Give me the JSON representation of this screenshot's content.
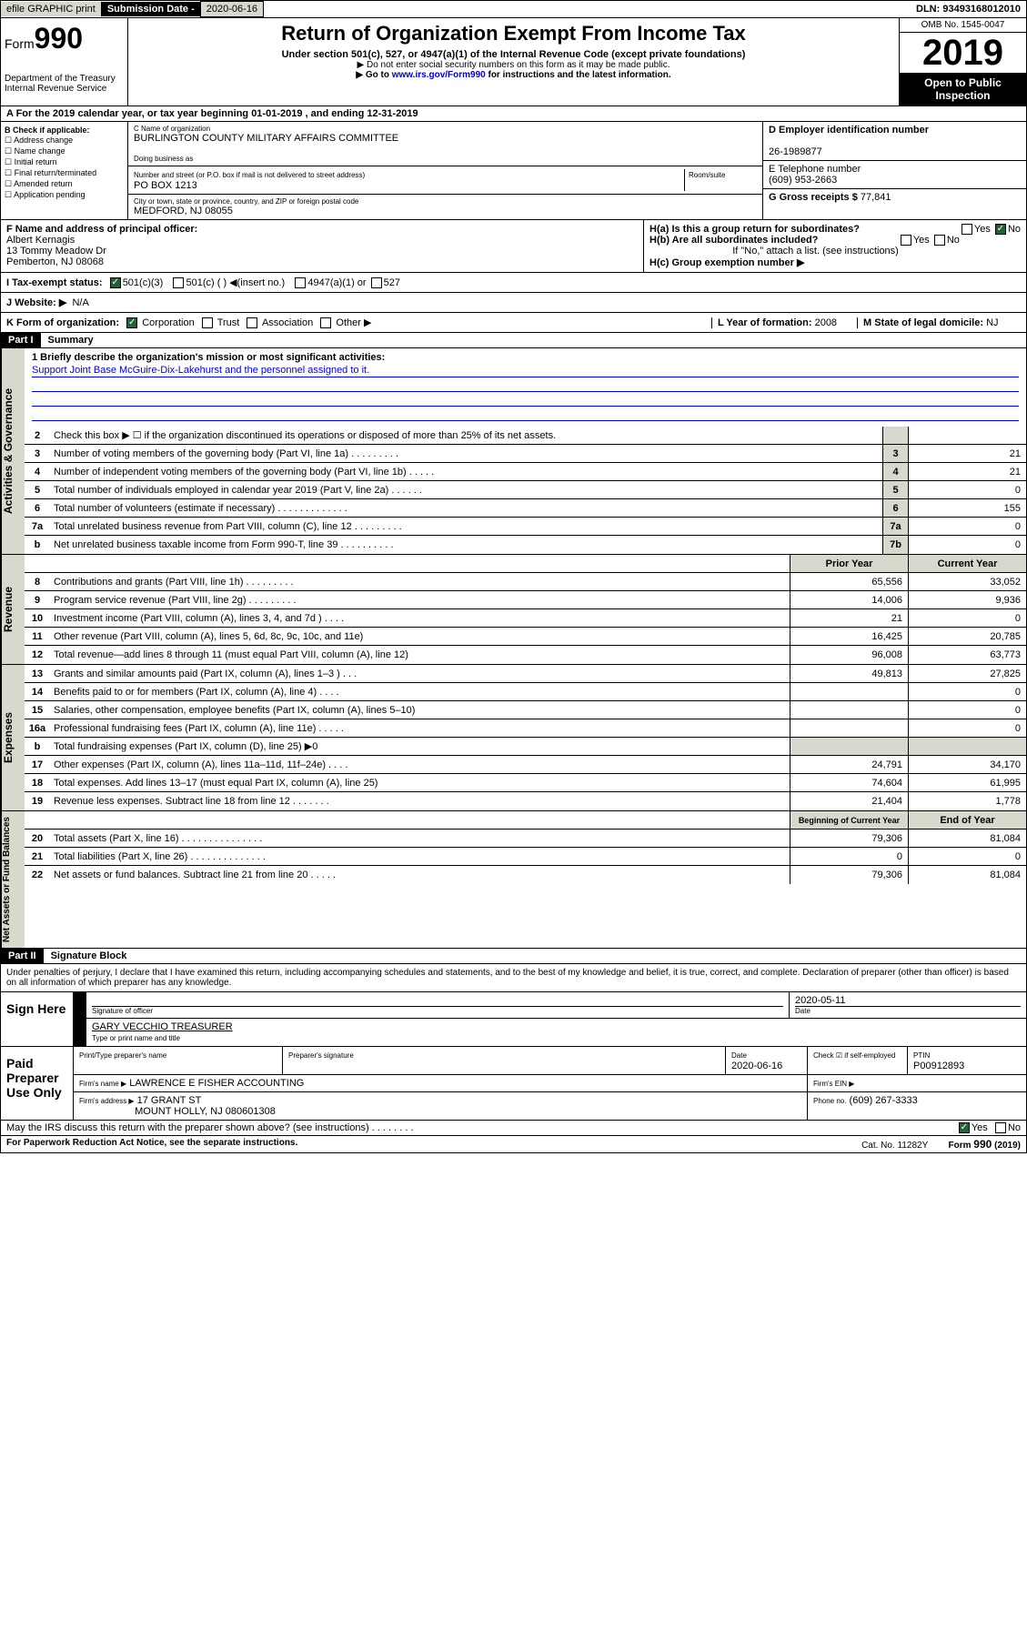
{
  "topbar": {
    "efile": "efile GRAPHIC print",
    "subdate_lbl": "Submission Date - ",
    "subdate": "2020-06-16",
    "dln_lbl": "DLN: ",
    "dln": "93493168012010"
  },
  "header": {
    "form_lbl": "Form",
    "form_num": "990",
    "dept": "Department of the Treasury\nInternal Revenue Service",
    "title": "Return of Organization Exempt From Income Tax",
    "subtitle": "Under section 501(c), 527, or 4947(a)(1) of the Internal Revenue Code (except private foundations)",
    "note1": "▶ Do not enter social security numbers on this form as it may be made public.",
    "note2_pre": "▶ Go to ",
    "note2_link": "www.irs.gov/Form990",
    "note2_post": " for instructions and the latest information.",
    "omb": "OMB No. 1545-0047",
    "year": "2019",
    "open": "Open to Public Inspection"
  },
  "row_a": "A For the 2019 calendar year, or tax year beginning 01-01-2019    , and ending 12-31-2019",
  "box_b": {
    "title": "B Check if applicable:",
    "items": [
      "Address change",
      "Name change",
      "Initial return",
      "Final return/terminated",
      "Amended return",
      "Application pending"
    ]
  },
  "box_c": {
    "name_lbl": "C Name of organization",
    "name": "BURLINGTON COUNTY MILITARY AFFAIRS COMMITTEE",
    "dba_lbl": "Doing business as",
    "addr_lbl": "Number and street (or P.O. box if mail is not delivered to street address)",
    "room_lbl": "Room/suite",
    "addr": "PO BOX 1213",
    "city_lbl": "City or town, state or province, country, and ZIP or foreign postal code",
    "city": "MEDFORD, NJ  08055"
  },
  "box_d": {
    "lbl": "D Employer identification number",
    "val": "26-1989877"
  },
  "box_e": {
    "lbl": "E Telephone number",
    "val": "(609) 953-2663"
  },
  "box_g": {
    "lbl": "G Gross receipts $",
    "val": "77,841"
  },
  "box_f": {
    "lbl": "F  Name and address of principal officer:",
    "name": "Albert Kernagis",
    "addr1": "13 Tommy Meadow Dr",
    "addr2": "Pemberton, NJ  08068"
  },
  "box_h": {
    "ha": "H(a)  Is this a group return for subordinates?",
    "hb": "H(b)  Are all subordinates included?",
    "hb_note": "If \"No,\" attach a list. (see instructions)",
    "hc": "H(c)  Group exemption number ▶",
    "yes": "Yes",
    "no": "No"
  },
  "tax_status": {
    "lbl": "I    Tax-exempt status:",
    "o1": "501(c)(3)",
    "o2": "501(c) (  ) ◀(insert no.)",
    "o3": "4947(a)(1) or",
    "o4": "527"
  },
  "website": {
    "lbl": "J   Website: ▶",
    "val": "N/A"
  },
  "box_k": {
    "lbl": "K Form of organization:",
    "o1": "Corporation",
    "o2": "Trust",
    "o3": "Association",
    "o4": "Other ▶"
  },
  "box_l": {
    "lbl": "L Year of formation:",
    "val": "2008"
  },
  "box_m": {
    "lbl": "M State of legal domicile:",
    "val": "NJ"
  },
  "parts": {
    "p1": "Part I",
    "p1_title": "Summary",
    "p2": "Part II",
    "p2_title": "Signature Block"
  },
  "sections": {
    "s1": "Activities & Governance",
    "s2": "Revenue",
    "s3": "Expenses",
    "s4": "Net Assets or Fund Balances"
  },
  "mission": {
    "lbl": "1   Briefly describe the organization's mission or most significant activities:",
    "txt": "Support Joint Base McGuire-Dix-Lakehurst and the personnel assigned to it."
  },
  "lines": [
    {
      "n": "2",
      "t": "Check this box ▶ ☐  if the organization discontinued its operations or disposed of more than 25% of its net assets."
    },
    {
      "n": "3",
      "t": "Number of voting members of the governing body (Part VI, line 1a)   .    .    .    .    .    .    .    .    .",
      "b": "3",
      "v": "21"
    },
    {
      "n": "4",
      "t": "Number of independent voting members of the governing body (Part VI, line 1b)    .    .    .    .    .",
      "b": "4",
      "v": "21"
    },
    {
      "n": "5",
      "t": "Total number of individuals employed in calendar year 2019 (Part V, line 2a)   .    .    .    .    .    .",
      "b": "5",
      "v": "0"
    },
    {
      "n": "6",
      "t": "Total number of volunteers (estimate if necessary)   .    .    .    .    .    .    .    .    .    .    .    .    .",
      "b": "6",
      "v": "155"
    },
    {
      "n": "7a",
      "t": "Total unrelated business revenue from Part VIII, column (C), line 12   .    .    .    .    .    .    .    .    .",
      "b": "7a",
      "v": "0"
    },
    {
      "n": "b",
      "t": "Net unrelated business taxable income from Form 990-T, line 39   .    .    .    .    .    .    .    .    .    .",
      "b": "7b",
      "v": "0"
    }
  ],
  "col_hdrs": {
    "prior": "Prior Year",
    "current": "Current Year",
    "begin": "Beginning of Current Year",
    "end": "End of Year"
  },
  "revenue": [
    {
      "n": "8",
      "t": "Contributions and grants (Part VIII, line 1h)   .    .    .    .    .    .    .    .    .",
      "p": "65,556",
      "c": "33,052"
    },
    {
      "n": "9",
      "t": "Program service revenue (Part VIII, line 2g)   .    .    .    .    .    .    .    .    .",
      "p": "14,006",
      "c": "9,936"
    },
    {
      "n": "10",
      "t": "Investment income (Part VIII, column (A), lines 3, 4, and 7d )   .    .    .    .",
      "p": "21",
      "c": "0"
    },
    {
      "n": "11",
      "t": "Other revenue (Part VIII, column (A), lines 5, 6d, 8c, 9c, 10c, and 11e)",
      "p": "16,425",
      "c": "20,785"
    },
    {
      "n": "12",
      "t": "Total revenue—add lines 8 through 11 (must equal Part VIII, column (A), line 12)",
      "p": "96,008",
      "c": "63,773"
    }
  ],
  "expenses": [
    {
      "n": "13",
      "t": "Grants and similar amounts paid (Part IX, column (A), lines 1–3 )   .    .    .",
      "p": "49,813",
      "c": "27,825"
    },
    {
      "n": "14",
      "t": "Benefits paid to or for members (Part IX, column (A), line 4)   .    .    .    .",
      "p": "",
      "c": "0"
    },
    {
      "n": "15",
      "t": "Salaries, other compensation, employee benefits (Part IX, column (A), lines 5–10)",
      "p": "",
      "c": "0"
    },
    {
      "n": "16a",
      "t": "Professional fundraising fees (Part IX, column (A), line 11e)   .    .    .    .    .",
      "p": "",
      "c": "0"
    },
    {
      "n": "b",
      "t": "Total fundraising expenses (Part IX, column (D), line 25) ▶0",
      "gray": true
    },
    {
      "n": "17",
      "t": "Other expenses (Part IX, column (A), lines 11a–11d, 11f–24e)   .    .    .    .",
      "p": "24,791",
      "c": "34,170"
    },
    {
      "n": "18",
      "t": "Total expenses. Add lines 13–17 (must equal Part IX, column (A), line 25)",
      "p": "74,604",
      "c": "61,995"
    },
    {
      "n": "19",
      "t": "Revenue less expenses. Subtract line 18 from line 12   .    .    .    .    .    .    .",
      "p": "21,404",
      "c": "1,778"
    }
  ],
  "netassets": [
    {
      "n": "20",
      "t": "Total assets (Part X, line 16)   .    .    .    .    .    .    .    .    .    .    .    .    .    .    .",
      "p": "79,306",
      "c": "81,084"
    },
    {
      "n": "21",
      "t": "Total liabilities (Part X, line 26)   .    .    .    .    .    .    .    .    .    .    .    .    .    .",
      "p": "0",
      "c": "0"
    },
    {
      "n": "22",
      "t": "Net assets or fund balances. Subtract line 21 from line 20   .    .    .    .    .",
      "p": "79,306",
      "c": "81,084"
    }
  ],
  "perjury": "Under penalties of perjury, I declare that I have examined this return, including accompanying schedules and statements, and to the best of my knowledge and belief, it is true, correct, and complete. Declaration of preparer (other than officer) is based on all information of which preparer has any knowledge.",
  "sign": {
    "lbl": "Sign Here",
    "sig_lbl": "Signature of officer",
    "date_lbl": "Date",
    "date": "2020-05-11",
    "name": "GARY VECCHIO  TREASURER",
    "name_lbl": "Type or print name and title"
  },
  "paid": {
    "lbl": "Paid Preparer Use Only",
    "prep_name_lbl": "Print/Type preparer's name",
    "prep_sig_lbl": "Preparer's signature",
    "prep_date_lbl": "Date",
    "prep_date": "2020-06-16",
    "self_lbl": "Check ☑ if self-employed",
    "ptin_lbl": "PTIN",
    "ptin": "P00912893",
    "firm_name_lbl": "Firm's name    ▶",
    "firm_name": "LAWRENCE E FISHER ACCOUNTING",
    "firm_ein_lbl": "Firm's EIN ▶",
    "firm_addr_lbl": "Firm's address ▶",
    "firm_addr": "17 GRANT ST",
    "firm_addr2": "MOUNT HOLLY, NJ  080601308",
    "phone_lbl": "Phone no.",
    "phone": "(609) 267-3333"
  },
  "discuss": "May the IRS discuss this return with the preparer shown above? (see instructions)    .    .    .    .    .    .    .    .",
  "footer": {
    "pra": "For Paperwork Reduction Act Notice, see the separate instructions.",
    "cat": "Cat. No. 11282Y",
    "form": "Form 990 (2019)"
  }
}
